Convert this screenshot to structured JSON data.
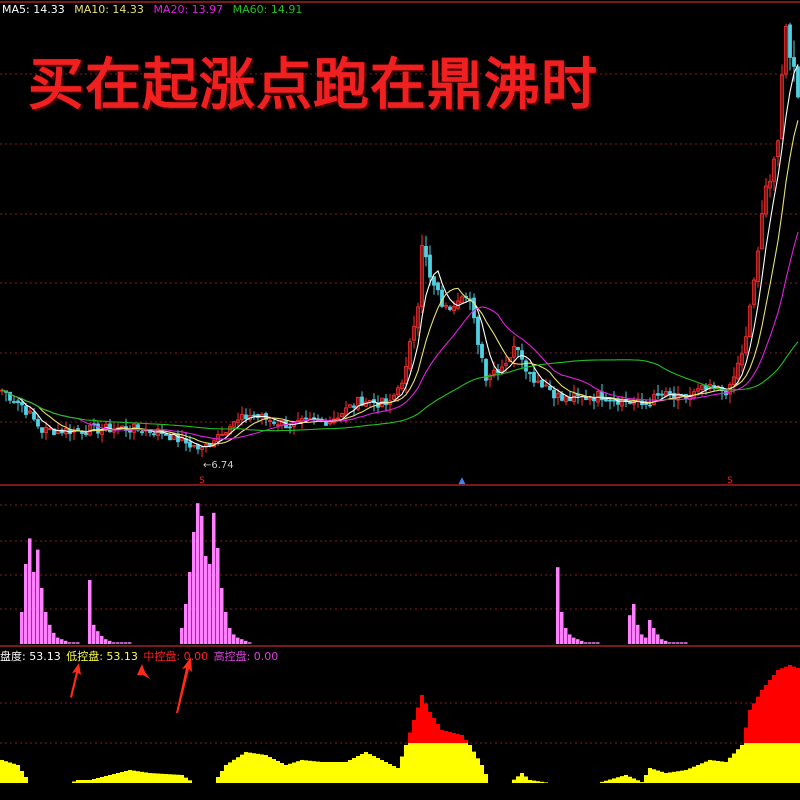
{
  "headline": "买在起涨点跑在鼎沸时",
  "ma_legend": [
    {
      "label": "MA5: 14.33",
      "color": "#ffffff"
    },
    {
      "label": "MA10: 14.33",
      "color": "#e8e070"
    },
    {
      "label": "MA20: 13.97",
      "color": "#e020e0"
    },
    {
      "label": "MA60: 14.91",
      "color": "#20c020"
    }
  ],
  "low_marker": "←6.74",
  "signal_markers": [
    {
      "label": "S",
      "color": "#ff2020",
      "bar": 50
    },
    {
      "label": "▲",
      "color": "#4080ff",
      "bar": 115
    },
    {
      "label": "S",
      "color": "#ff2020",
      "bar": 182
    }
  ],
  "indicator_legend": [
    {
      "label": "盘度: 53.13",
      "color": "#ffffff"
    },
    {
      "label": "低控盘: 53.13",
      "color": "#ffff40"
    },
    {
      "label": "中控盘: 0.00",
      "color": "#ff2020"
    },
    {
      "label": "高控盘: 0.00",
      "color": "#e040e0"
    }
  ],
  "colors": {
    "up": "#ff3030",
    "down": "#50d0e0",
    "grid": "#802020",
    "volume": "#ff80ff",
    "area_low": "#ffff00",
    "area_high": "#ff0000"
  },
  "chart_data": [
    {
      "type": "candlestick",
      "bars": 200,
      "low": 6.74,
      "close_keypoints": [
        [
          0,
          8.13
        ],
        [
          5,
          7.81
        ],
        [
          10,
          7.27
        ],
        [
          20,
          7.27
        ],
        [
          30,
          7.32
        ],
        [
          40,
          7.23
        ],
        [
          50,
          6.85
        ],
        [
          55,
          7.27
        ],
        [
          62,
          7.6
        ],
        [
          72,
          7.38
        ],
        [
          82,
          7.49
        ],
        [
          90,
          7.92
        ],
        [
          97,
          7.81
        ],
        [
          101,
          8.56
        ],
        [
          104,
          10.05
        ],
        [
          105,
          11.34
        ],
        [
          107,
          10.48
        ],
        [
          111,
          9.84
        ],
        [
          115,
          10.27
        ],
        [
          117,
          9.95
        ],
        [
          121,
          8.45
        ],
        [
          125,
          8.66
        ],
        [
          129,
          9.09
        ],
        [
          132,
          8.45
        ],
        [
          136,
          8.24
        ],
        [
          140,
          7.92
        ],
        [
          150,
          8.02
        ],
        [
          160,
          7.81
        ],
        [
          165,
          8.02
        ],
        [
          170,
          7.92
        ],
        [
          175,
          8.13
        ],
        [
          182,
          8.13
        ],
        [
          186,
          9.2
        ],
        [
          189,
          11.12
        ],
        [
          191,
          12.41
        ],
        [
          194,
          13.47
        ],
        [
          196,
          15.83
        ],
        [
          199,
          14.54
        ]
      ],
      "moving_averages": [
        5,
        10,
        20,
        60
      ]
    },
    {
      "type": "bar",
      "clusters": [
        {
          "start_bar": 5,
          "values": [
            20,
            50,
            66,
            45,
            59,
            35,
            20,
            12,
            7,
            4,
            3,
            2,
            1,
            1,
            1
          ]
        },
        {
          "start_bar": 22,
          "values": [
            40,
            12,
            8,
            5,
            3,
            2,
            1,
            1,
            1,
            1,
            1
          ]
        },
        {
          "start_bar": 45,
          "values": [
            10,
            25,
            45,
            70,
            88,
            80,
            55,
            50,
            82,
            60,
            35,
            20,
            10,
            6,
            4,
            3,
            2,
            1
          ]
        },
        {
          "start_bar": 139,
          "values": [
            48,
            20,
            10,
            6,
            4,
            3,
            2,
            1,
            1,
            1,
            1
          ]
        },
        {
          "start_bar": 157,
          "values": [
            18,
            25,
            12,
            6,
            4,
            15,
            10,
            6,
            3,
            2,
            1,
            1,
            1,
            1,
            1
          ]
        }
      ]
    },
    {
      "type": "area",
      "threshold": 33.3,
      "keypoints": [
        [
          0,
          19.2
        ],
        [
          4,
          15
        ],
        [
          7,
          0
        ],
        [
          17,
          0
        ],
        [
          19,
          2.5
        ],
        [
          22,
          2.5
        ],
        [
          27,
          6.7
        ],
        [
          32,
          10.8
        ],
        [
          37,
          8.3
        ],
        [
          45,
          6.7
        ],
        [
          48,
          0
        ],
        [
          53,
          0
        ],
        [
          56,
          15
        ],
        [
          61,
          25.8
        ],
        [
          66,
          23.3
        ],
        [
          71,
          15
        ],
        [
          75,
          19.2
        ],
        [
          80,
          17.5
        ],
        [
          86,
          17.5
        ],
        [
          91,
          25.8
        ],
        [
          96,
          17.5
        ],
        [
          99,
          12.5
        ],
        [
          101,
          31.7
        ],
        [
          105,
          73.3
        ],
        [
          107,
          59.2
        ],
        [
          110,
          44.2
        ],
        [
          115,
          40
        ],
        [
          117,
          31.7
        ],
        [
          120,
          15
        ],
        [
          122,
          0
        ],
        [
          127,
          0
        ],
        [
          130,
          8.3
        ],
        [
          132,
          2.5
        ],
        [
          137,
          0
        ],
        [
          149,
          0
        ],
        [
          156,
          6.7
        ],
        [
          160,
          0.8
        ],
        [
          162,
          12.5
        ],
        [
          166,
          8.3
        ],
        [
          171,
          10.8
        ],
        [
          177,
          19.2
        ],
        [
          181,
          17.5
        ],
        [
          185,
          31.7
        ],
        [
          187,
          60.8
        ],
        [
          190,
          77.5
        ],
        [
          194,
          94.2
        ],
        [
          197,
          98.3
        ],
        [
          199,
          95.8
        ]
      ]
    }
  ]
}
